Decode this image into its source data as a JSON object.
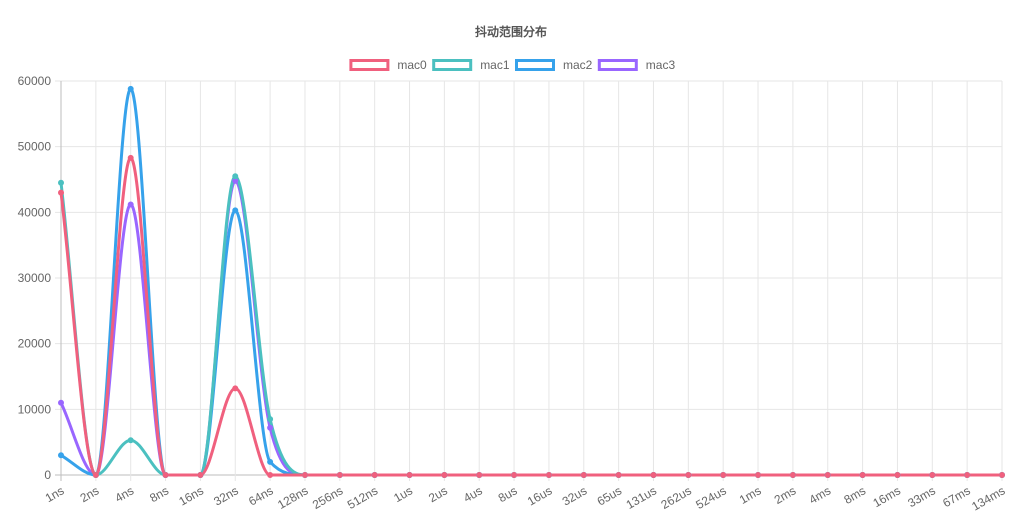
{
  "chart_data": {
    "type": "line",
    "title": "抖动范围分布",
    "legend_position": "top",
    "grid": true,
    "ylim": [
      0,
      60000
    ],
    "yticks": [
      "0",
      "10000",
      "20000",
      "30000",
      "40000",
      "50000",
      "60000"
    ],
    "categories": [
      "1ns",
      "2ns",
      "4ns",
      "8ns",
      "16ns",
      "32ns",
      "64ns",
      "128ns",
      "256ns",
      "512ns",
      "1us",
      "2us",
      "4us",
      "8us",
      "16us",
      "32us",
      "65us",
      "131us",
      "262us",
      "524us",
      "1ms",
      "2ms",
      "4ms",
      "8ms",
      "16ms",
      "33ms",
      "67ms",
      "134ms"
    ],
    "series": [
      {
        "name": "mac0",
        "color": "#f0607e",
        "values": [
          43000,
          0,
          48300,
          0,
          0,
          13200,
          0,
          0,
          0,
          0,
          0,
          0,
          0,
          0,
          0,
          0,
          0,
          0,
          0,
          0,
          0,
          0,
          0,
          0,
          0,
          0,
          0,
          0
        ]
      },
      {
        "name": "mac1",
        "color": "#4bc0c0",
        "values": [
          44500,
          0,
          5300,
          0,
          0,
          45500,
          8500,
          0,
          0,
          0,
          0,
          0,
          0,
          0,
          0,
          0,
          0,
          0,
          0,
          0,
          0,
          0,
          0,
          0,
          0,
          0,
          0,
          0
        ]
      },
      {
        "name": "mac2",
        "color": "#36a2eb",
        "values": [
          3000,
          0,
          58800,
          0,
          0,
          40300,
          2000,
          0,
          0,
          0,
          0,
          0,
          0,
          0,
          0,
          0,
          0,
          0,
          0,
          0,
          0,
          0,
          0,
          0,
          0,
          0,
          0,
          0
        ]
      },
      {
        "name": "mac3",
        "color": "#9966ff",
        "values": [
          11000,
          0,
          41200,
          0,
          0,
          44800,
          7200,
          0,
          0,
          0,
          0,
          0,
          0,
          0,
          0,
          0,
          0,
          0,
          0,
          0,
          0,
          0,
          0,
          0,
          0,
          0,
          0,
          0
        ]
      }
    ]
  }
}
